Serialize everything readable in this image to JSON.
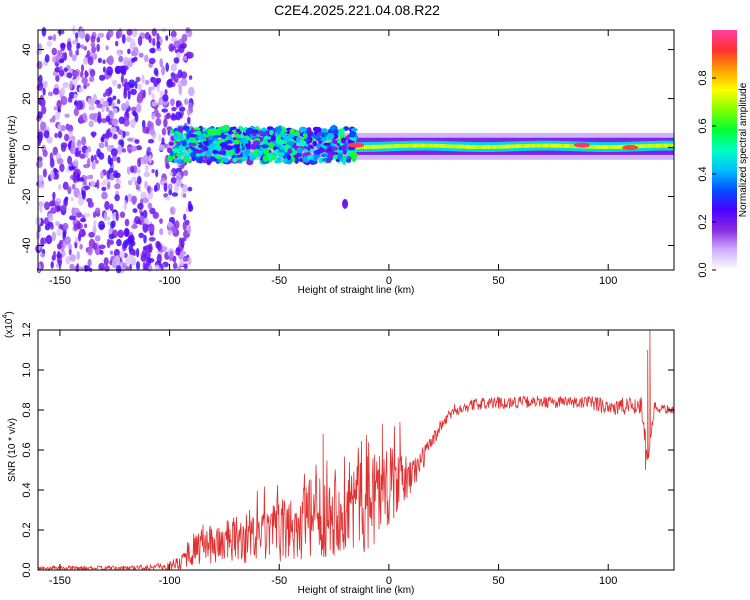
{
  "figure": {
    "title": "C2E4.2025.221.04.08.R22"
  },
  "chart_data": [
    {
      "type": "heatmap",
      "panel": "spectrogram",
      "xlabel": "Height of straight line (km)",
      "ylabel": "Frequency (Hz)",
      "xlim": [
        -160,
        130
      ],
      "ylim": [
        -50,
        48
      ],
      "xticks": [
        -150,
        -100,
        -50,
        0,
        50,
        100
      ],
      "yticks": [
        -40,
        -20,
        0,
        20,
        40
      ],
      "colorbar": {
        "label": "Normalized spectral amplitude",
        "range": [
          0.0,
          1.0
        ],
        "ticks": [
          0.0,
          0.2,
          0.4,
          0.6,
          0.8
        ],
        "colors": [
          "#ffffff",
          "#cfb0ff",
          "#8a2be2",
          "#4b00ff",
          "#0050ff",
          "#00c0ff",
          "#00ffc0",
          "#00ff30",
          "#80ff00",
          "#ffff00",
          "#ffa000",
          "#ff3030",
          "#ff40a0"
        ]
      },
      "regions": [
        {
          "name": "noise",
          "x": [
            -160,
            -100
          ],
          "freq": [
            -50,
            48
          ],
          "amplitude": 0.25
        },
        {
          "name": "transition",
          "x": [
            -100,
            -15
          ],
          "freq": [
            -6,
            8
          ],
          "amplitude": 0.55
        },
        {
          "name": "carrier",
          "x": [
            -15,
            130
          ],
          "freq": [
            -2,
            3
          ],
          "amplitude": 0.7
        }
      ],
      "features": [
        {
          "x": -20,
          "freq": -23,
          "amplitude": 0.2
        },
        {
          "x": -15,
          "freq": 1,
          "amplitude": 0.95
        },
        {
          "x": 88,
          "freq": 1,
          "amplitude": 0.95
        },
        {
          "x": 110,
          "freq": 0,
          "amplitude": 0.9
        }
      ]
    },
    {
      "type": "line",
      "panel": "snr",
      "xlabel": "Height of straight line (km)",
      "ylabel": "SNR (10 * v/v)",
      "scale_label": "(x10",
      "scale_exp": "4",
      "xlim": [
        -160,
        130
      ],
      "ylim": [
        0,
        1.2
      ],
      "xticks": [
        -150,
        -100,
        -50,
        0,
        50,
        100
      ],
      "yticks": [
        0.0,
        0.2,
        0.4,
        0.6,
        0.8,
        1.0,
        1.2
      ],
      "color": "#e03030",
      "envelope": {
        "x": [
          -160,
          -120,
          -100,
          -95,
          -90,
          -80,
          -70,
          -60,
          -50,
          -40,
          -30,
          -20,
          -10,
          -5,
          0,
          5,
          10,
          15,
          20,
          25,
          30,
          40,
          60,
          80,
          95,
          105,
          110,
          115,
          118,
          121,
          130
        ],
        "base": [
          0.01,
          0.01,
          0.02,
          0.04,
          0.1,
          0.13,
          0.15,
          0.16,
          0.19,
          0.23,
          0.28,
          0.33,
          0.38,
          0.4,
          0.42,
          0.44,
          0.47,
          0.55,
          0.65,
          0.74,
          0.8,
          0.83,
          0.84,
          0.84,
          0.83,
          0.81,
          0.82,
          0.83,
          0.55,
          0.81,
          0.8
        ],
        "spread": [
          0.01,
          0.01,
          0.02,
          0.04,
          0.08,
          0.1,
          0.12,
          0.13,
          0.15,
          0.2,
          0.22,
          0.25,
          0.3,
          0.25,
          0.2,
          0.15,
          0.1,
          0.06,
          0.04,
          0.03,
          0.03,
          0.03,
          0.03,
          0.03,
          0.04,
          0.05,
          0.05,
          0.05,
          0.05,
          0.03,
          0.02
        ]
      },
      "spikes": [
        {
          "x": -30,
          "y": 0.68
        },
        {
          "x": -3,
          "y": 0.73
        },
        {
          "x": 5,
          "y": 0.74
        },
        {
          "x": 117,
          "y": 0.5
        },
        {
          "x": 119,
          "y": 1.2
        },
        {
          "x": 118,
          "y": 1.1
        }
      ]
    }
  ]
}
